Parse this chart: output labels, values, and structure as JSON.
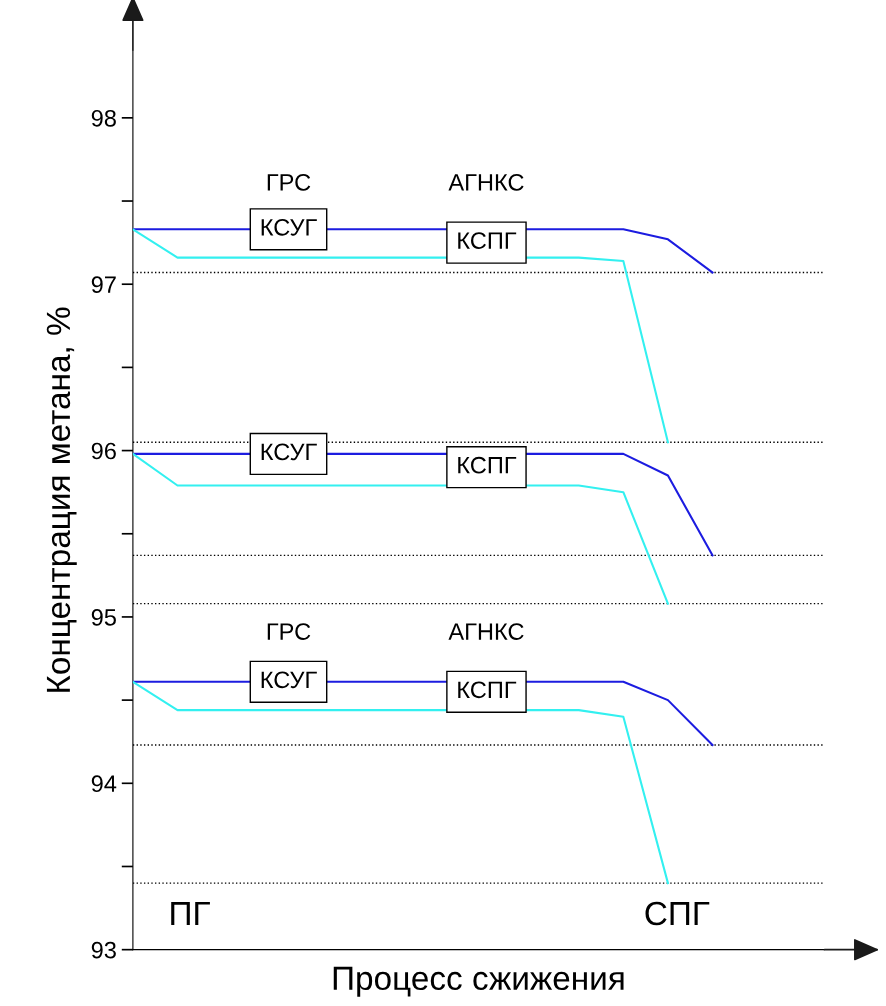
{
  "chart_data": {
    "type": "line",
    "ylabel": "Концентрация метана, %",
    "xlabel": "Процесс сжижения",
    "categories": [
      null,
      null,
      null,
      null,
      null,
      null,
      null,
      null,
      null,
      null,
      null,
      null,
      null,
      null
    ],
    "series": [
      {
        "color": "#1c1ce0",
        "values": [
          97.33,
          97.33,
          97.33,
          null,
          null,
          97.33,
          97.33,
          97.33,
          null,
          97.33,
          97.33,
          97.33,
          97.27,
          97.07
        ]
      },
      {
        "color": "#33f0f0",
        "values": [
          97.33,
          97.16,
          97.16,
          97.16,
          97.16,
          97.16,
          97.16,
          97.16,
          null,
          97.16,
          97.16,
          97.14,
          96.05,
          null
        ]
      },
      {
        "color": "#1c1ce0",
        "values": [
          95.98,
          95.98,
          95.98,
          null,
          null,
          95.98,
          95.98,
          95.98,
          null,
          95.98,
          95.98,
          95.98,
          95.85,
          95.37
        ]
      },
      {
        "color": "#33f0f0",
        "values": [
          95.98,
          95.79,
          95.79,
          95.79,
          95.79,
          95.79,
          95.79,
          95.79,
          null,
          95.79,
          95.79,
          95.75,
          95.08,
          null
        ]
      },
      {
        "color": "#1c1ce0",
        "values": [
          94.61,
          94.61,
          94.61,
          null,
          null,
          94.61,
          94.61,
          94.61,
          null,
          94.61,
          94.61,
          94.61,
          94.5,
          94.23
        ]
      },
      {
        "color": "#33f0f0",
        "values": [
          94.61,
          94.44,
          94.44,
          94.44,
          94.44,
          94.44,
          94.44,
          94.44,
          null,
          94.44,
          94.44,
          94.4,
          93.4,
          null
        ]
      }
    ],
    "ylim": [
      93,
      98.4
    ],
    "yticks": [
      93,
      {
        "value": 93.5,
        "label": null
      },
      94,
      {
        "value": 94.5,
        "label": null
      },
      95,
      {
        "value": 95.5,
        "label": null
      },
      96,
      {
        "value": 96.5,
        "label": null
      },
      97,
      {
        "value": 97.5,
        "label": null
      },
      98
    ],
    "ref_lines": [
      {
        "axis": "y",
        "value": 97.07,
        "color": "#000000",
        "line_style": "dotted"
      },
      {
        "axis": "y",
        "value": 96.05,
        "color": "#000000",
        "line_style": "dotted"
      },
      {
        "axis": "y",
        "value": 95.37,
        "color": "#000000",
        "line_style": "dotted"
      },
      {
        "axis": "y",
        "value": 95.08,
        "color": "#000000",
        "line_style": "dotted"
      },
      {
        "axis": "y",
        "value": 94.23,
        "color": "#000000",
        "line_style": "dotted"
      },
      {
        "axis": "y",
        "value": 93.4,
        "color": "#000000",
        "line_style": "dotted"
      }
    ],
    "annotations": [
      "ГРС",
      "КСУГ",
      "АГНКС",
      "КСПГ",
      "КСУГ",
      "КСПГ",
      "ГРС",
      "КСУГ",
      "АГНКС",
      "КСПГ",
      "ПГ",
      "СПГ"
    ],
    "marker": "none",
    "line_style": "solid",
    "grid": false,
    "legend": false
  }
}
